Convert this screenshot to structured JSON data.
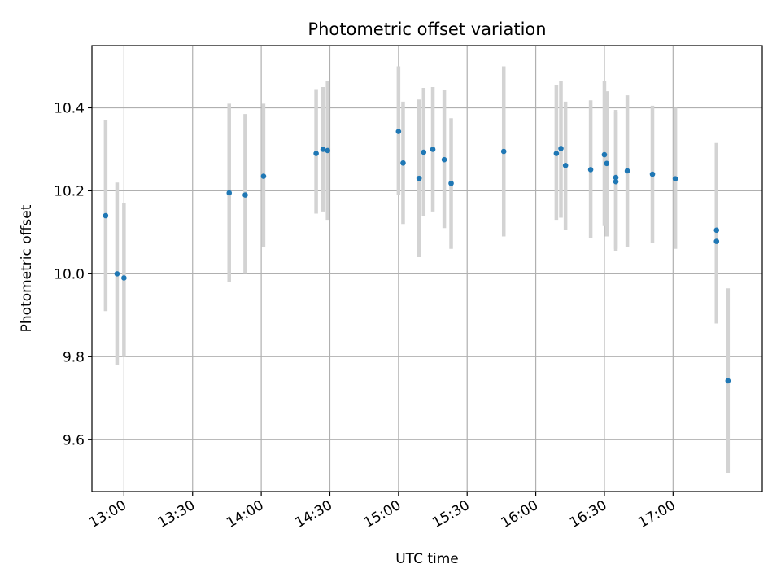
{
  "chart_data": {
    "type": "scatter",
    "title": "Photometric offset variation",
    "xlabel": "UTC time",
    "ylabel": "Photometric offset",
    "x_ticks": [
      "13:00",
      "13:30",
      "14:00",
      "14:30",
      "15:00",
      "15:30",
      "16:00",
      "16:30",
      "17:00"
    ],
    "y_ticks": [
      "9.6",
      "9.8",
      "10.0",
      "10.2",
      "10.4"
    ],
    "xlim": [
      "12:46",
      "17:39"
    ],
    "ylim": [
      9.475,
      10.55
    ],
    "grid": true,
    "colors": {
      "point": "#1f77b4",
      "errorbar": "#d3d3d3"
    },
    "points": [
      {
        "x": "12:52",
        "y": 10.14,
        "ylo": 9.91,
        "yhi": 10.37
      },
      {
        "x": "12:57",
        "y": 10.0,
        "ylo": 9.78,
        "yhi": 10.22
      },
      {
        "x": "13:00",
        "y": 9.99,
        "ylo": 9.8,
        "yhi": 10.17
      },
      {
        "x": "13:46",
        "y": 10.195,
        "ylo": 9.98,
        "yhi": 10.41
      },
      {
        "x": "13:53",
        "y": 10.19,
        "ylo": 10.0,
        "yhi": 10.385
      },
      {
        "x": "14:01",
        "y": 10.235,
        "ylo": 10.065,
        "yhi": 10.41
      },
      {
        "x": "14:24",
        "y": 10.29,
        "ylo": 10.145,
        "yhi": 10.445
      },
      {
        "x": "14:27",
        "y": 10.3,
        "ylo": 10.15,
        "yhi": 10.45
      },
      {
        "x": "14:29",
        "y": 10.297,
        "ylo": 10.13,
        "yhi": 10.465
      },
      {
        "x": "15:00",
        "y": 10.343,
        "ylo": 10.19,
        "yhi": 10.5
      },
      {
        "x": "15:02",
        "y": 10.267,
        "ylo": 10.12,
        "yhi": 10.415
      },
      {
        "x": "15:09",
        "y": 10.23,
        "ylo": 10.04,
        "yhi": 10.42
      },
      {
        "x": "15:11",
        "y": 10.293,
        "ylo": 10.14,
        "yhi": 10.448
      },
      {
        "x": "15:15",
        "y": 10.3,
        "ylo": 10.15,
        "yhi": 10.45
      },
      {
        "x": "15:20",
        "y": 10.275,
        "ylo": 10.11,
        "yhi": 10.443
      },
      {
        "x": "15:23",
        "y": 10.218,
        "ylo": 10.06,
        "yhi": 10.375
      },
      {
        "x": "15:46",
        "y": 10.295,
        "ylo": 10.09,
        "yhi": 10.5
      },
      {
        "x": "16:09",
        "y": 10.29,
        "ylo": 10.13,
        "yhi": 10.455
      },
      {
        "x": "16:11",
        "y": 10.302,
        "ylo": 10.135,
        "yhi": 10.465
      },
      {
        "x": "16:13",
        "y": 10.261,
        "ylo": 10.105,
        "yhi": 10.415
      },
      {
        "x": "16:24",
        "y": 10.251,
        "ylo": 10.085,
        "yhi": 10.418
      },
      {
        "x": "16:30",
        "y": 10.287,
        "ylo": 10.115,
        "yhi": 10.465
      },
      {
        "x": "16:31",
        "y": 10.266,
        "ylo": 10.09,
        "yhi": 10.44
      },
      {
        "x": "16:35",
        "y": 10.232,
        "ylo": 10.055,
        "yhi": 10.39
      },
      {
        "x": "16:35",
        "y": 10.222,
        "ylo": 10.06,
        "yhi": 10.395
      },
      {
        "x": "16:40",
        "y": 10.248,
        "ylo": 10.065,
        "yhi": 10.43
      },
      {
        "x": "16:51",
        "y": 10.24,
        "ylo": 10.075,
        "yhi": 10.405
      },
      {
        "x": "17:01",
        "y": 10.229,
        "ylo": 10.06,
        "yhi": 10.4
      },
      {
        "x": "17:19",
        "y": 10.105,
        "ylo": 9.9,
        "yhi": 10.315
      },
      {
        "x": "17:19",
        "y": 10.078,
        "ylo": 9.88,
        "yhi": 10.28
      },
      {
        "x": "17:24",
        "y": 9.742,
        "ylo": 9.52,
        "yhi": 9.965
      }
    ]
  }
}
